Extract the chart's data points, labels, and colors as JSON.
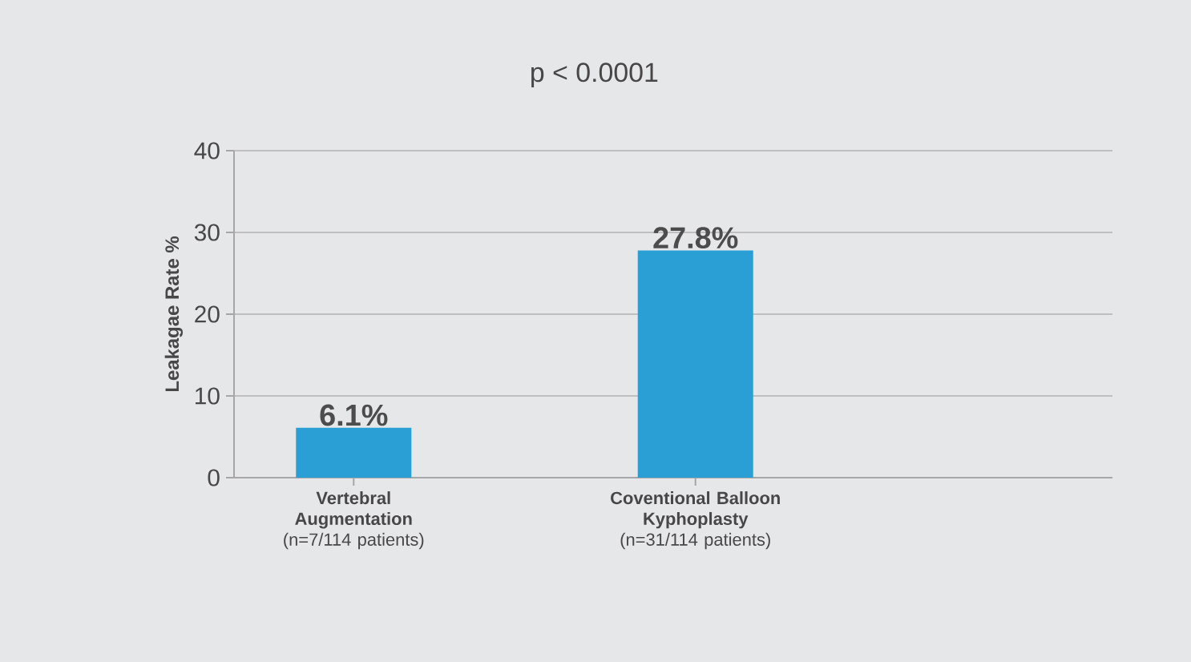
{
  "chart_data": {
    "type": "bar",
    "title": "p < 0.0001",
    "ylabel": "Leakagae Rate %",
    "categories": [
      "**Vertebral Augmentation** (n=7/114 patients)",
      "**Coventional Balloon Kyphoplasty** (n=31/114 patients)"
    ],
    "values": [
      6.1,
      27.8
    ],
    "value_labels": [
      "6.1%",
      "27.8%"
    ],
    "color": "#2a9fd6",
    "ylim": [
      0,
      40
    ],
    "yticks": [
      0,
      10,
      20,
      30,
      40
    ],
    "grid": "y"
  }
}
